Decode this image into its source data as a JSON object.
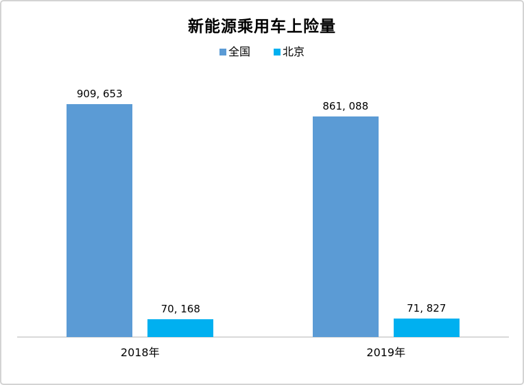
{
  "chart_data": {
    "type": "bar",
    "title": "新能源乘用车上险量",
    "categories": [
      "2018年",
      "2019年"
    ],
    "series": [
      {
        "name": "全国",
        "color": "#5B9BD5",
        "values": [
          909653,
          861088
        ],
        "display_labels": [
          "909, 653",
          "861, 088"
        ]
      },
      {
        "name": "北京",
        "color": "#00B0F0",
        "values": [
          70168,
          71827
        ],
        "display_labels": [
          "70, 168",
          "71, 827"
        ]
      }
    ],
    "xlabel": "",
    "ylabel": "",
    "ylim": [
      0,
      1000000
    ],
    "grid": false,
    "legend_position": "top",
    "data_labels_shown": true,
    "axis_line_color": "#D9D9D9",
    "background_color": "#FFFFFF",
    "border_color": "#D3D3D3",
    "text_color": "#000000"
  }
}
